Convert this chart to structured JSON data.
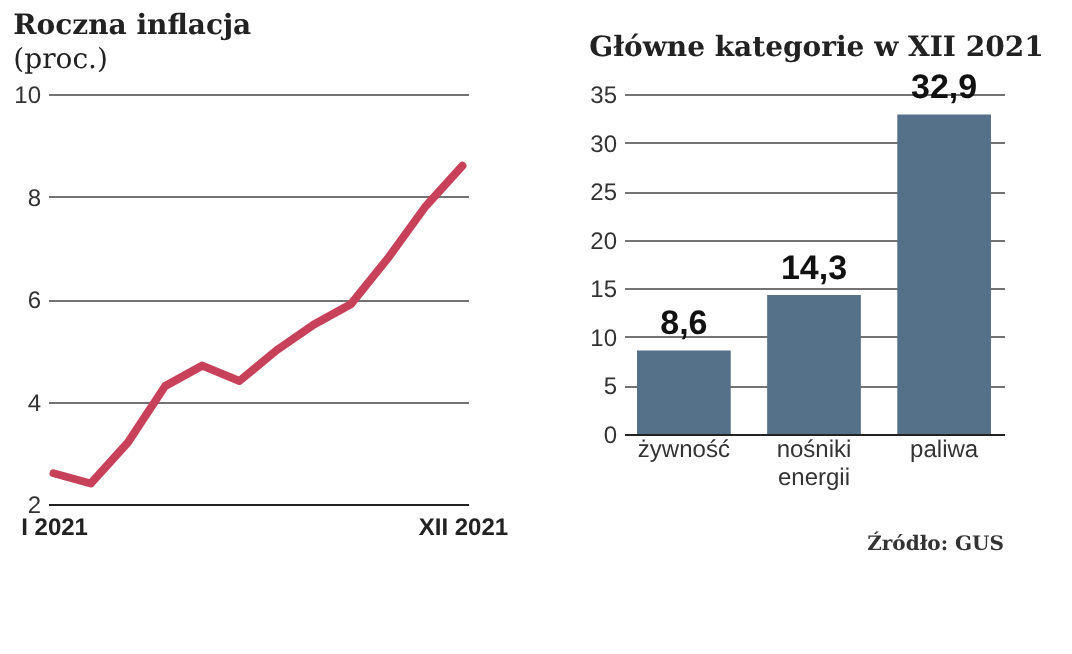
{
  "chart_data": [
    {
      "type": "line",
      "title": "Roczna inflacja",
      "subtitle": "(proc.)",
      "categories": [
        "I 2021",
        null,
        null,
        null,
        null,
        null,
        null,
        null,
        null,
        null,
        null,
        "XII 2021"
      ],
      "values": [
        2.6,
        2.4,
        3.2,
        4.3,
        4.7,
        4.4,
        5.0,
        5.5,
        5.9,
        6.8,
        7.8,
        8.6
      ],
      "color": "#c8415a",
      "ylim": [
        2,
        10
      ],
      "yticks": [
        2,
        4,
        6,
        8,
        10
      ],
      "grid": "y",
      "marker": "none",
      "line_style": "solid"
    },
    {
      "type": "bar",
      "title": "Główne kategorie w XII 2021",
      "categories": [
        "żywność",
        "nośniki energii",
        "paliwa"
      ],
      "values": [
        8.6,
        14.3,
        32.9
      ],
      "value_labels": [
        "8,6",
        "14,3",
        "32,9"
      ],
      "color": "#557089",
      "ylim": [
        0,
        35
      ],
      "yticks": [
        0,
        5,
        10,
        15,
        20,
        25,
        30,
        35
      ],
      "grid": "y",
      "annotations": [
        "Źródło: GUS"
      ]
    }
  ]
}
